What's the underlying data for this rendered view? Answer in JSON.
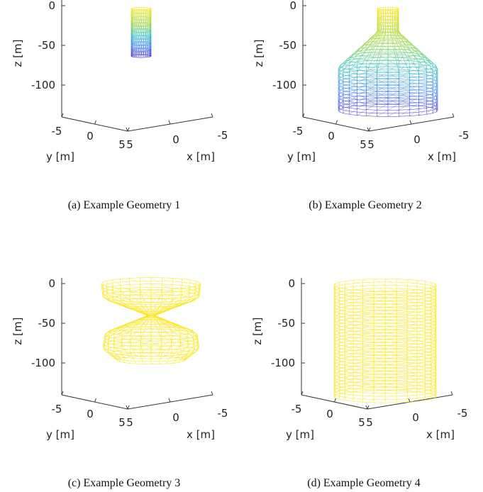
{
  "panels": [
    {
      "caption": "(a) Example Geometry 1",
      "z_label": "z [m]",
      "y_label": "y [m]",
      "x_label": "x [m]",
      "z_ticks": [
        0,
        -50,
        -100
      ],
      "y_ticks": [
        -5,
        0,
        5
      ],
      "x_ticks": [
        5,
        0,
        -5
      ]
    },
    {
      "caption": "(b) Example Geometry 2",
      "z_label": "z [m]",
      "y_label": "y [m]",
      "x_label": "x [m]",
      "z_ticks": [
        0,
        -50,
        -100
      ],
      "y_ticks": [
        -5,
        0,
        5
      ],
      "x_ticks": [
        5,
        0,
        -5
      ]
    },
    {
      "caption": "(c) Example Geometry 3",
      "z_label": "z [m]",
      "y_label": "y [m]",
      "x_label": "x [m]",
      "z_ticks": [
        0,
        -50,
        -100
      ],
      "y_ticks": [
        -5,
        0,
        5
      ],
      "x_ticks": [
        5,
        0,
        -5
      ]
    },
    {
      "caption": "(d) Example Geometry 4",
      "z_label": "z [m]",
      "y_label": "y [m]",
      "x_label": "x [m]",
      "z_ticks": [
        0,
        -50,
        -100
      ],
      "y_ticks": [
        -5,
        0,
        5
      ],
      "x_ticks": [
        5,
        0,
        -5
      ]
    }
  ]
}
